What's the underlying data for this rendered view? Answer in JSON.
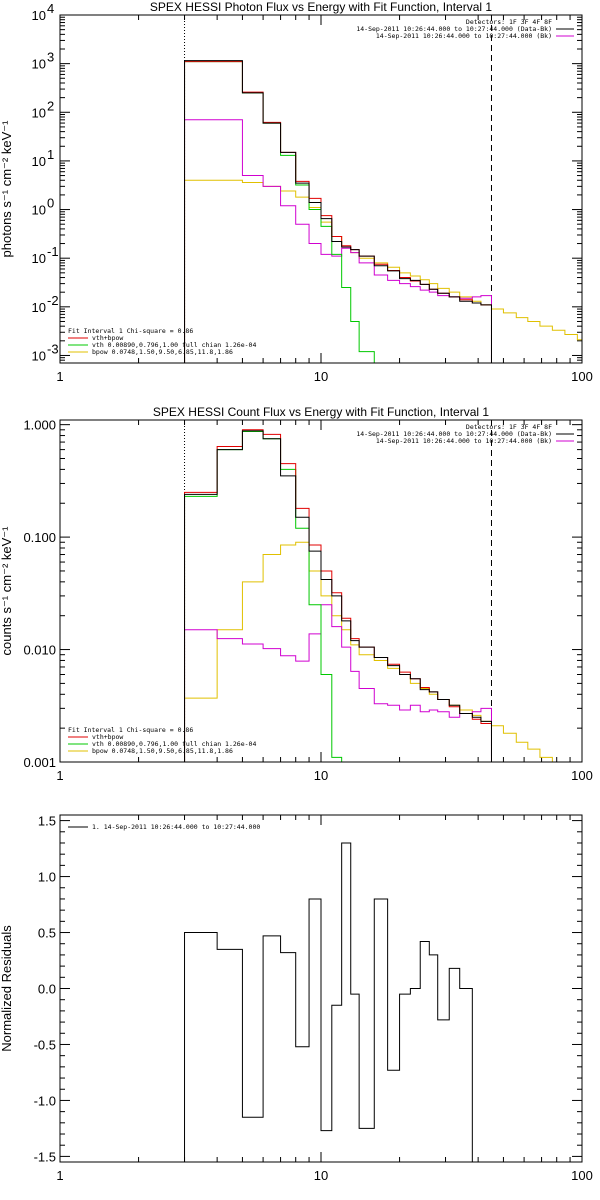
{
  "colors": {
    "data": "#000000",
    "model_total": "#e00000",
    "vth": "#00c800",
    "bpow": "#e0c000",
    "background": "#d000d0"
  },
  "chart_data": [
    {
      "type": "line",
      "title": "SPEX HESSI Photon Flux vs Energy with Fit Function, Interval 1",
      "ylabel": "photons s⁻¹ cm⁻² keV⁻¹",
      "xscale": "log",
      "yscale": "log",
      "xlim": [
        1,
        100
      ],
      "ylim": [
        0.0007,
        10000
      ],
      "xticks": [
        "1",
        "10",
        "100"
      ],
      "yticks": [
        {
          "v": 0.001,
          "b": "10",
          "e": "-3"
        },
        {
          "v": 0.01,
          "b": "10",
          "e": "-2"
        },
        {
          "v": 0.1,
          "b": "10",
          "e": "-1"
        },
        {
          "v": 1,
          "b": "10",
          "e": "0"
        },
        {
          "v": 10,
          "b": "10",
          "e": "1"
        },
        {
          "v": 100,
          "b": "10",
          "e": "2"
        },
        {
          "v": 1000,
          "b": "10",
          "e": "3"
        },
        {
          "v": 10000,
          "b": "10",
          "e": "4"
        }
      ],
      "vlines": [
        {
          "x": 3.0,
          "style": "dotted"
        },
        {
          "x": 45.0,
          "style": "dashed"
        }
      ],
      "legend_right": {
        "position": "top-right",
        "entries": [
          {
            "text": "Detectors: 1F 3F 4F 8F",
            "color": ""
          },
          {
            "text": "14-Sep-2011 10:26:44.000 to 10:27:44.000 (Data-Bk)",
            "color": "#000000"
          },
          {
            "text": "14-Sep-2011 10:26:44.000 to 10:27:44.000 (Bk)",
            "color": "#d000d0"
          }
        ]
      },
      "legend_left": {
        "position": "bottom-left",
        "entries": [
          {
            "text": "Fit Interval 1    Chi-square = 0.86",
            "color": ""
          },
          {
            "text": "vth+bpow",
            "color": "#e00000"
          },
          {
            "text": "vth 0.00890,0.796,1.00   full chian 1.26e-04",
            "color": "#00c800"
          },
          {
            "text": "bpow 0.0748,1.50,9.50,6.85,11.8,1.86",
            "color": "#e0c000"
          }
        ]
      },
      "edges": [
        3,
        4,
        5,
        6,
        7,
        8,
        9,
        10,
        11,
        12,
        13,
        14,
        16,
        18,
        20,
        22,
        24,
        26,
        28,
        31,
        34,
        38,
        41,
        45,
        50,
        56,
        62,
        69,
        77,
        86,
        96,
        100
      ],
      "series": [
        {
          "key": "data",
          "color": "#000000",
          "values": [
            1150,
            1150,
            250,
            60,
            15,
            3.5,
            1.4,
            0.65,
            0.22,
            0.17,
            0.15,
            0.11,
            0.07,
            0.055,
            0.038,
            0.035,
            0.029,
            0.023,
            0.019,
            0.016,
            0.013,
            0.012,
            0.011
          ]
        },
        {
          "key": "model_total",
          "color": "#e00000",
          "values": [
            1100,
            1100,
            260,
            62,
            15,
            3.8,
            1.7,
            0.75,
            0.28,
            0.18,
            0.15,
            0.11,
            0.075,
            0.056,
            0.04,
            0.034,
            0.029,
            0.023,
            0.019,
            0.016,
            0.014,
            0.012,
            0.011
          ]
        },
        {
          "key": "vth",
          "color": "#00c800",
          "values": [
            1100,
            1100,
            250,
            60,
            13,
            3.2,
            1.0,
            0.45,
            0.12,
            0.025,
            0.005,
            0.0012,
            0.0004
          ]
        },
        {
          "key": "bpow",
          "color": "#e0c000",
          "values": [
            4,
            4,
            3.6,
            3.0,
            2.4,
            1.8,
            1.1,
            0.55,
            0.28,
            0.17,
            0.13,
            0.1,
            0.08,
            0.065,
            0.05,
            0.043,
            0.036,
            0.03,
            0.024,
            0.02,
            0.016,
            0.013,
            0.011,
            0.009,
            0.0075,
            0.006,
            0.005,
            0.004,
            0.0033,
            0.0027,
            0.0021
          ]
        },
        {
          "key": "background",
          "color": "#d000d0",
          "values": [
            70,
            70,
            5,
            3,
            1.2,
            0.5,
            0.2,
            0.12,
            0.11,
            0.16,
            0.13,
            0.08,
            0.045,
            0.035,
            0.03,
            0.026,
            0.022,
            0.02,
            0.017,
            0.016,
            0.015,
            0.016,
            0.017
          ]
        }
      ]
    },
    {
      "type": "line",
      "title": "SPEX HESSI Count Flux vs Energy with Fit Function, Interval 1",
      "ylabel": "counts s⁻¹ cm⁻² keV⁻¹",
      "xscale": "log",
      "yscale": "log",
      "xlim": [
        1,
        100
      ],
      "ylim": [
        0.001,
        1.1
      ],
      "xticks": [
        "1",
        "10",
        "100"
      ],
      "yticks": [
        {
          "v": 0.001,
          "t": "0.001"
        },
        {
          "v": 0.01,
          "t": "0.010"
        },
        {
          "v": 0.1,
          "t": "0.100"
        },
        {
          "v": 1,
          "t": "1.000"
        }
      ],
      "vlines": [
        {
          "x": 3.0,
          "style": "dotted"
        },
        {
          "x": 45.0,
          "style": "dashed"
        }
      ],
      "legend_right": {
        "position": "top-right",
        "entries": [
          {
            "text": "Detectors: 1F 3F 4F 8F",
            "color": ""
          },
          {
            "text": "14-Sep-2011 10:26:44.000 to 10:27:44.000 (Data-Bk)",
            "color": "#000000"
          },
          {
            "text": "14-Sep-2011 10:26:44.000 to 10:27:44.000 (Bk)",
            "color": "#d000d0"
          }
        ]
      },
      "legend_left": {
        "position": "bottom-left",
        "entries": [
          {
            "text": "Fit Interval 1    Chi-square = 0.86",
            "color": ""
          },
          {
            "text": "vth+bpow",
            "color": "#e00000"
          },
          {
            "text": "vth 0.00890,0.796,1.00   full chian 1.26e-04",
            "color": "#00c800"
          },
          {
            "text": "bpow 0.0748,1.50,9.50,6.85,11.8,1.86",
            "color": "#e0c000"
          }
        ]
      },
      "edges": [
        3,
        4,
        5,
        6,
        7,
        8,
        9,
        10,
        11,
        12,
        13,
        14,
        16,
        18,
        20,
        22,
        24,
        26,
        28,
        31,
        34,
        38,
        41,
        45,
        50,
        56,
        62,
        69,
        77,
        86,
        96,
        100
      ],
      "series": [
        {
          "key": "data",
          "color": "#000000",
          "values": [
            0.24,
            0.6,
            0.88,
            0.75,
            0.35,
            0.15,
            0.075,
            0.042,
            0.03,
            0.018,
            0.012,
            0.0105,
            0.0085,
            0.0072,
            0.006,
            0.0055,
            0.0044,
            0.0042,
            0.0036,
            0.0032,
            0.0027,
            0.0025,
            0.0023
          ]
        },
        {
          "key": "model_total",
          "color": "#e00000",
          "values": [
            0.25,
            0.64,
            0.9,
            0.82,
            0.45,
            0.18,
            0.085,
            0.05,
            0.032,
            0.019,
            0.0125,
            0.0105,
            0.0085,
            0.0074,
            0.0063,
            0.0055,
            0.0046,
            0.0042,
            0.0036,
            0.0031,
            0.0027,
            0.0024,
            0.0022
          ]
        },
        {
          "key": "vth",
          "color": "#00c800",
          "values": [
            0.23,
            0.6,
            0.87,
            0.75,
            0.4,
            0.12,
            0.025,
            0.006,
            0.0011,
            0.0002
          ]
        },
        {
          "key": "bpow",
          "color": "#e0c000",
          "values": [
            0.0037,
            0.015,
            0.04,
            0.07,
            0.085,
            0.09,
            0.05,
            0.03,
            0.02,
            0.015,
            0.011,
            0.009,
            0.008,
            0.0068,
            0.006,
            0.005,
            0.0045,
            0.004,
            0.0036,
            0.0032,
            0.0029,
            0.0026,
            0.0023,
            0.0021,
            0.0018,
            0.0015,
            0.0013,
            0.0011,
            0.001,
            0.0009,
            0.0008
          ]
        },
        {
          "key": "background",
          "color": "#d000d0",
          "values": [
            0.015,
            0.0125,
            0.0112,
            0.0102,
            0.0088,
            0.0079,
            0.0138,
            0.025,
            0.016,
            0.0105,
            0.0064,
            0.0045,
            0.0033,
            0.0032,
            0.0029,
            0.0032,
            0.0028,
            0.0029,
            0.0028,
            0.0025,
            0.0027,
            0.0028,
            0.003
          ]
        }
      ]
    },
    {
      "type": "line",
      "title": "",
      "ylabel": "Normalized Residuals",
      "xscale": "log",
      "yscale": "linear",
      "xlim": [
        1,
        100
      ],
      "ylim": [
        -1.55,
        1.55
      ],
      "xticks": [
        "1",
        "10",
        "100"
      ],
      "yticks": [
        {
          "v": 1.5,
          "t": "1.5"
        },
        {
          "v": 1.0,
          "t": "1.0"
        },
        {
          "v": 0.5,
          "t": "0.5"
        },
        {
          "v": 0.0,
          "t": "0.0"
        },
        {
          "v": -0.5,
          "t": "-0.5"
        },
        {
          "v": -1.0,
          "t": "-1.0"
        },
        {
          "v": -1.5,
          "t": "-1.5"
        }
      ],
      "legend_left": {
        "position": "top-left",
        "entries": [
          {
            "text": "1. 14-Sep-2011 10:26:44.000 to 10:27:44.000",
            "color": "#000000"
          }
        ]
      },
      "edges": [
        3,
        4,
        5,
        6,
        7,
        8,
        9,
        10,
        11,
        12,
        13,
        14,
        16,
        18,
        20,
        22,
        24,
        26,
        28,
        31,
        34,
        38,
        41,
        45
      ],
      "series": [
        {
          "key": "residuals",
          "color": "#000000",
          "values": [
            0.5,
            0.35,
            -1.15,
            0.47,
            0.32,
            -0.52,
            0.8,
            -1.27,
            -0.15,
            1.3,
            -0.05,
            -1.25,
            0.8,
            -0.73,
            -0.05,
            0.0,
            0.42,
            0.3,
            -0.28,
            0.18,
            0.0
          ]
        }
      ]
    }
  ]
}
